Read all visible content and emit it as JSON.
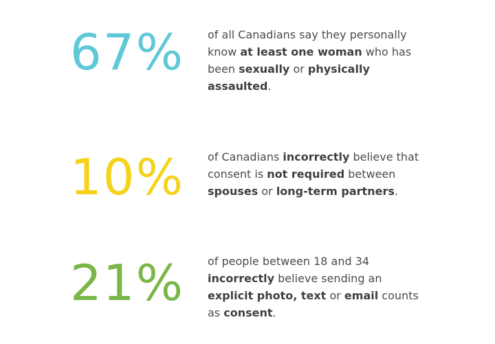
{
  "stats": [
    {
      "value": "67%",
      "color": "#5ec8d6",
      "lines": [
        [
          {
            "t": "of all Canadians say they personally",
            "b": false
          }
        ],
        [
          {
            "t": "know ",
            "b": false
          },
          {
            "t": "at least one woman",
            "b": true
          },
          {
            "t": " who has",
            "b": false
          }
        ],
        [
          {
            "t": "been ",
            "b": false
          },
          {
            "t": "sexually",
            "b": true
          },
          {
            "t": " or ",
            "b": false
          },
          {
            "t": "physically",
            "b": true
          }
        ],
        [
          {
            "t": "assaulted",
            "b": true
          },
          {
            "t": ".",
            "b": false
          }
        ]
      ]
    },
    {
      "value": "10%",
      "color": "#f5d31c",
      "lines": [
        [
          {
            "t": "of Canadians ",
            "b": false
          },
          {
            "t": "incorrectly",
            "b": true
          },
          {
            "t": " believe that",
            "b": false
          }
        ],
        [
          {
            "t": "consent is ",
            "b": false
          },
          {
            "t": "not required",
            "b": true
          },
          {
            "t": " between",
            "b": false
          }
        ],
        [
          {
            "t": "spouses",
            "b": true
          },
          {
            "t": " or ",
            "b": false
          },
          {
            "t": "long-term partners",
            "b": true
          },
          {
            "t": ".",
            "b": false
          }
        ]
      ]
    },
    {
      "value": "21%",
      "color": "#7ab648",
      "lines": [
        [
          {
            "t": "of people between 18 and 34",
            "b": false
          }
        ],
        [
          {
            "t": "incorrectly",
            "b": true
          },
          {
            "t": " believe sending an",
            "b": false
          }
        ],
        [
          {
            "t": "explicit photo, text",
            "b": true
          },
          {
            "t": " or ",
            "b": false
          },
          {
            "t": "email",
            "b": true
          },
          {
            "t": " counts",
            "b": false
          }
        ],
        [
          {
            "t": "as ",
            "b": false
          },
          {
            "t": "consent",
            "b": true
          },
          {
            "t": ".",
            "b": false
          }
        ]
      ]
    }
  ]
}
